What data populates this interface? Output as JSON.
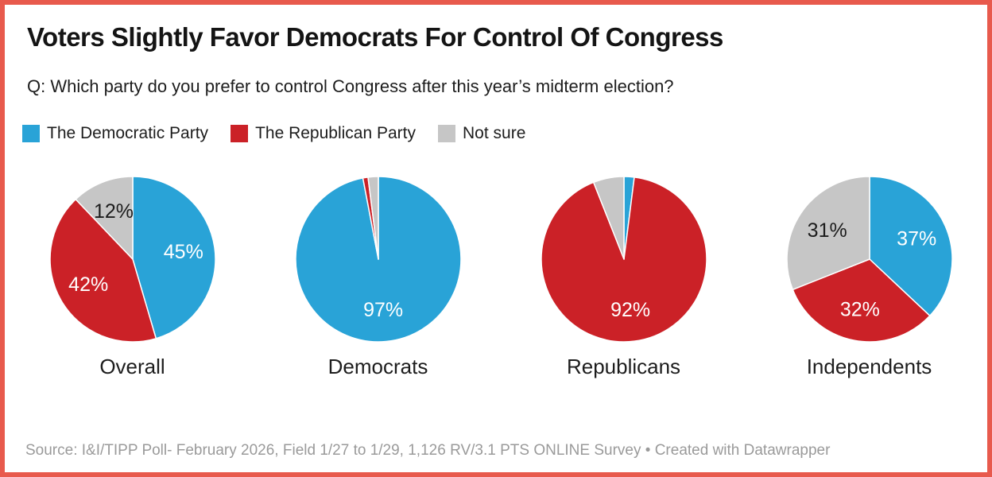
{
  "header": {
    "title": "Voters Slightly Favor Democrats For Control Of Congress",
    "question": "Q: Which party do you prefer to control Congress after this year’s midterm election?"
  },
  "colors": {
    "democratic_blue": "#29a3d7",
    "republican_red": "#cb2127",
    "not_sure_gray": "#c6c6c6",
    "frame_border": "#e85a4d",
    "title_text": "#141414",
    "body_text": "#1d1d1d",
    "source_text": "#9a9a9a",
    "label_on_color": "#ffffff",
    "label_on_gray": "#1d1d1d"
  },
  "chart_data": {
    "type": "pie",
    "title": "Voters Slightly Favor Democrats For Control Of Congress",
    "subtitle": "Q: Which party do you prefer to control Congress after this year’s midterm election?",
    "legend_position": "top",
    "series_labels": [
      "The Democratic Party",
      "The Republican Party",
      "Not sure"
    ],
    "series_colors": [
      "#29a3d7",
      "#cb2127",
      "#c6c6c6"
    ],
    "label_text_colors": [
      "#ffffff",
      "#ffffff",
      "#1d1d1d"
    ],
    "start_angle_deg": 0,
    "direction": "clockwise",
    "pies": [
      {
        "category": "Overall",
        "values": [
          45,
          42,
          12
        ],
        "value_labels": [
          "45%",
          "42%",
          "12%"
        ]
      },
      {
        "category": "Democrats",
        "values": [
          97,
          1,
          2
        ],
        "value_labels": [
          "97%",
          "",
          ""
        ]
      },
      {
        "category": "Republicans",
        "values": [
          2,
          92,
          6
        ],
        "value_labels": [
          "",
          "92%",
          ""
        ]
      },
      {
        "category": "Independents",
        "values": [
          37,
          32,
          31
        ],
        "value_labels": [
          "37%",
          "32%",
          "31%"
        ]
      }
    ]
  },
  "footer": {
    "source_prefix": "Source: ",
    "source_text": "I&I/TIPP Poll- February 2026, Field 1/27 to 1/29, 1,126 RV/3.1 PTS ONLINE Survey",
    "separator": " • ",
    "credit": "Created with Datawrapper"
  }
}
